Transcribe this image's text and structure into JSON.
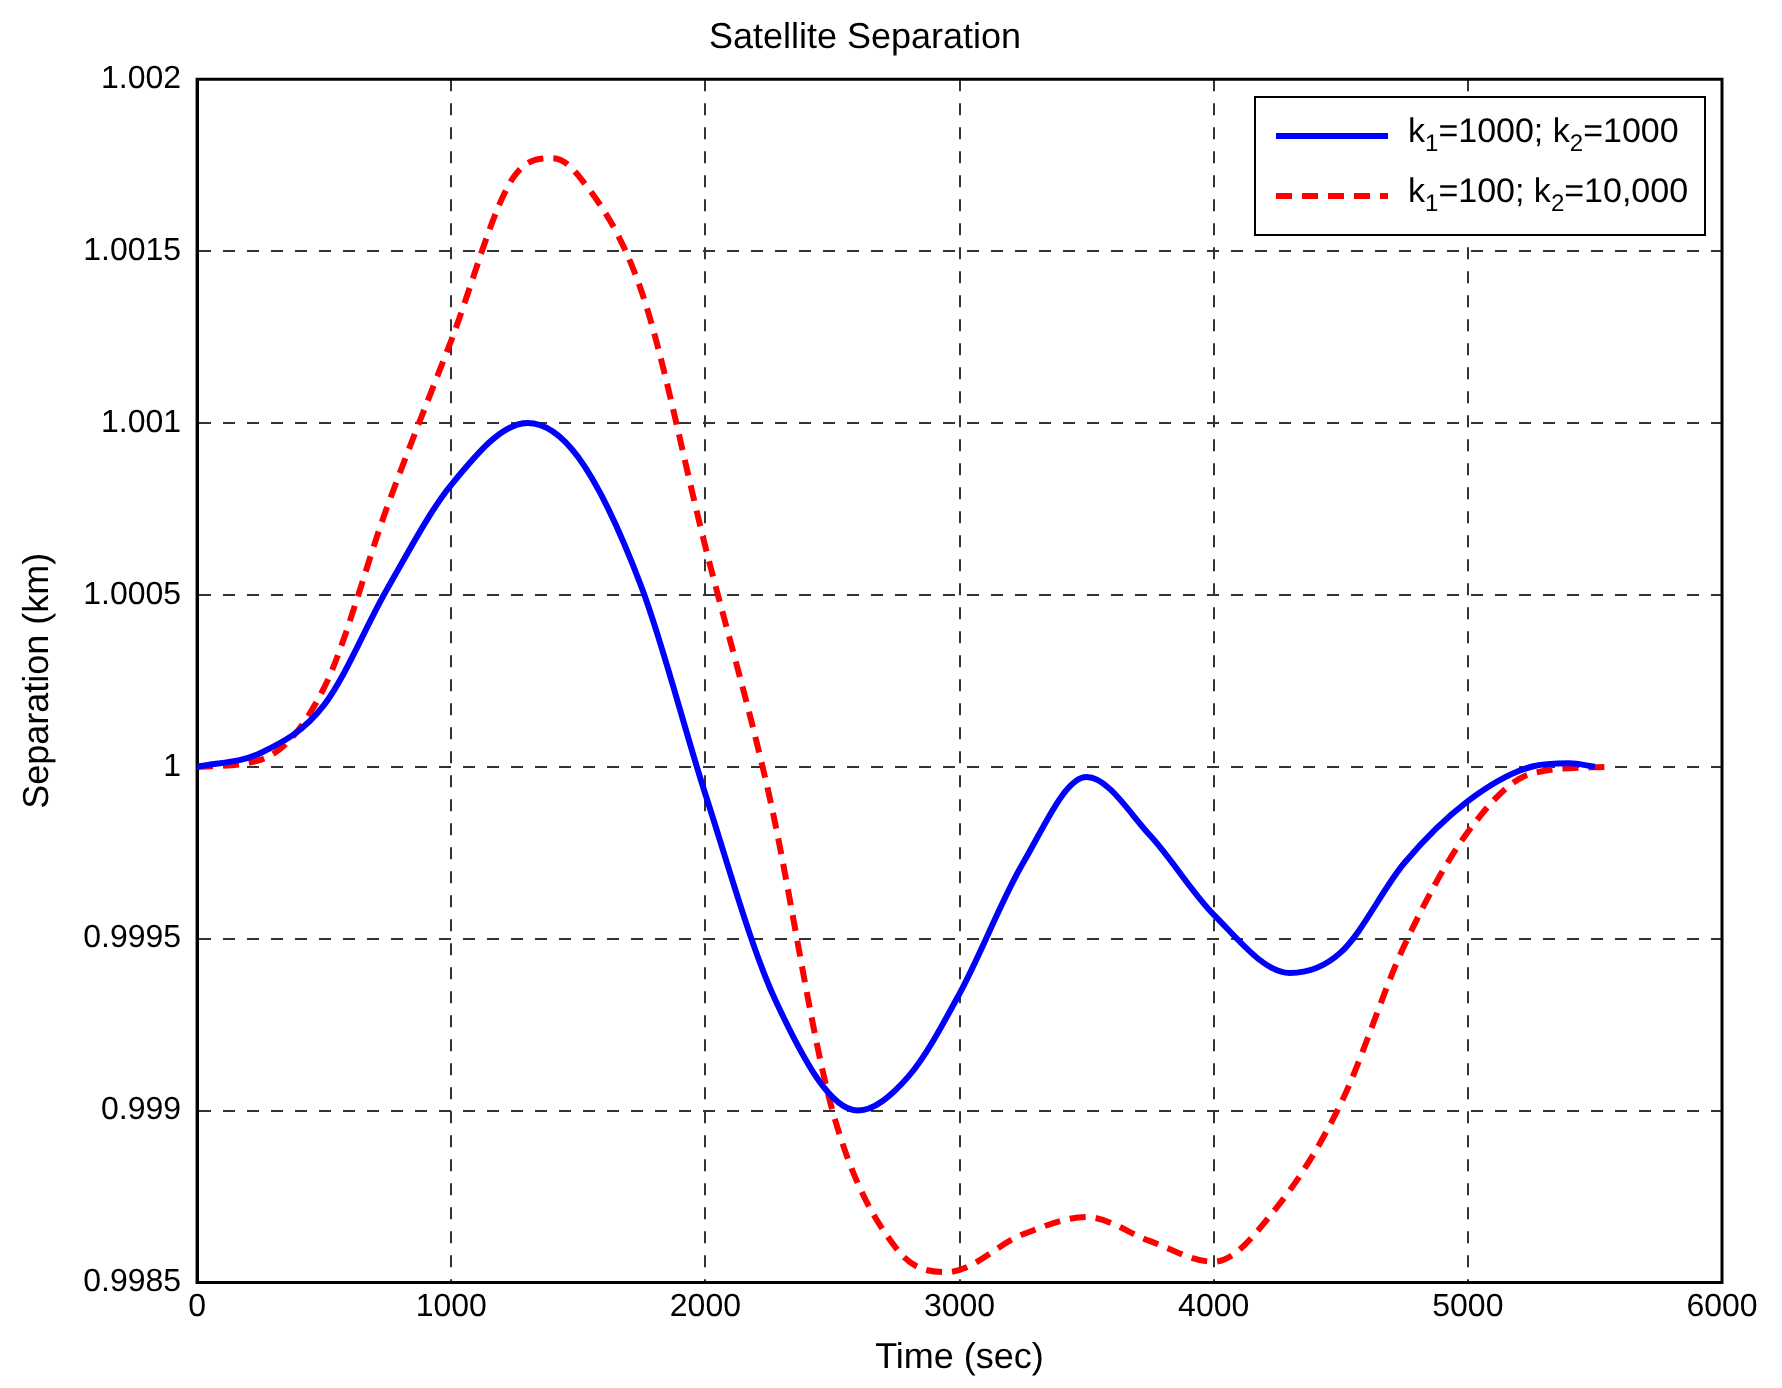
{
  "chart_data": {
    "type": "line",
    "title": "Satellite Separation",
    "xlabel": "Time (sec)",
    "ylabel": "Separation (km)",
    "xlim": [
      0,
      6000
    ],
    "xticks": [
      0,
      1000,
      2000,
      3000,
      4000,
      5000,
      6000
    ],
    "ylim": [
      0.9985,
      1.002
    ],
    "yticks": [
      0.9985,
      0.999,
      0.9995,
      1,
      1.0005,
      1.001,
      1.0015,
      1.002
    ],
    "grid": true,
    "legend": "top right",
    "marker": "none",
    "series": [
      {
        "name": "k$_{1}$=1000; k$_{2}$=1000",
        "color": "#0000ff",
        "line_style": "solid",
        "x": [
          0,
          250,
          500,
          750,
          1000,
          1300,
          1500,
          1750,
          2000,
          2276,
          2600,
          2800,
          3000,
          3250,
          3500,
          3750,
          4000,
          4300,
          4500,
          4750,
          5000,
          5250,
          5400,
          5500
        ],
        "values": [
          1,
          1.00004,
          1.00018,
          1.00052,
          1.00082,
          1.001,
          1.0009,
          1.00052,
          0.99992,
          0.99932,
          0.999,
          0.9991,
          0.99934,
          0.99972,
          0.99997,
          0.9998,
          0.99957,
          0.9994,
          0.99946,
          0.99972,
          0.9999,
          1,
          1.00001,
          1
        ]
      },
      {
        "name": "k$_{1}$=100; k$_{2}$=10,000",
        "color": "#ff0000",
        "line_style": "dashed",
        "x": [
          0,
          250,
          500,
          750,
          1000,
          1250,
          1400,
          1500,
          1750,
          2000,
          2250,
          2500,
          2750,
          2950,
          3250,
          3500,
          3750,
          4000,
          4250,
          4500,
          4750,
          5000,
          5250,
          5550
        ],
        "values": [
          1,
          1.00002,
          1.00023,
          1.00076,
          1.00124,
          1.00172,
          1.00177,
          1.00172,
          1.00138,
          1.00064,
          0.99992,
          0.999,
          0.9986,
          0.99853,
          0.99864,
          0.99869,
          0.99862,
          0.99856,
          0.99872,
          0.99902,
          0.99948,
          0.99981,
          0.99998,
          1
        ]
      }
    ]
  }
}
